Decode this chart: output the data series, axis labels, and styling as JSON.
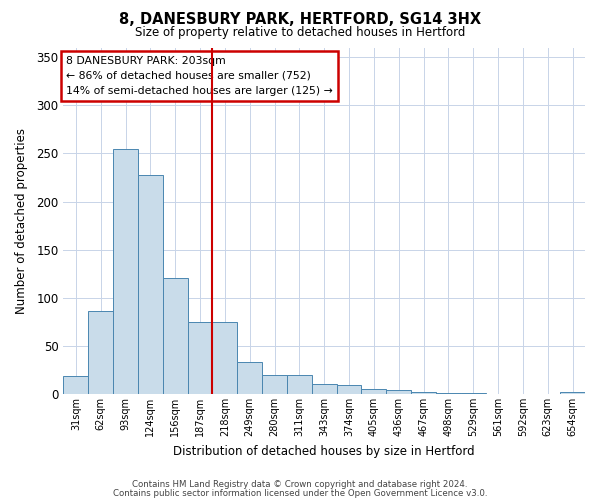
{
  "title": "8, DANESBURY PARK, HERTFORD, SG14 3HX",
  "subtitle": "Size of property relative to detached houses in Hertford",
  "xlabel": "Distribution of detached houses by size in Hertford",
  "ylabel": "Number of detached properties",
  "bin_labels": [
    "31sqm",
    "62sqm",
    "93sqm",
    "124sqm",
    "156sqm",
    "187sqm",
    "218sqm",
    "249sqm",
    "280sqm",
    "311sqm",
    "343sqm",
    "374sqm",
    "405sqm",
    "436sqm",
    "467sqm",
    "498sqm",
    "529sqm",
    "561sqm",
    "592sqm",
    "623sqm",
    "654sqm"
  ],
  "bar_values": [
    19,
    86,
    255,
    228,
    121,
    75,
    75,
    33,
    20,
    20,
    10,
    9,
    5,
    4,
    2,
    1,
    1,
    0,
    0,
    0,
    2
  ],
  "bar_color": "#c9dcea",
  "bar_edge_color": "#4a86b0",
  "highlight_line_color": "#cc0000",
  "ylim": [
    0,
    360
  ],
  "yticks": [
    0,
    50,
    100,
    150,
    200,
    250,
    300,
    350
  ],
  "annotation_title": "8 DANESBURY PARK: 203sqm",
  "annotation_line1": "← 86% of detached houses are smaller (752)",
  "annotation_line2": "14% of semi-detached houses are larger (125) →",
  "footer1": "Contains HM Land Registry data © Crown copyright and database right 2024.",
  "footer2": "Contains public sector information licensed under the Open Government Licence v3.0.",
  "background_color": "#ffffff",
  "grid_color": "#c8d4e8"
}
